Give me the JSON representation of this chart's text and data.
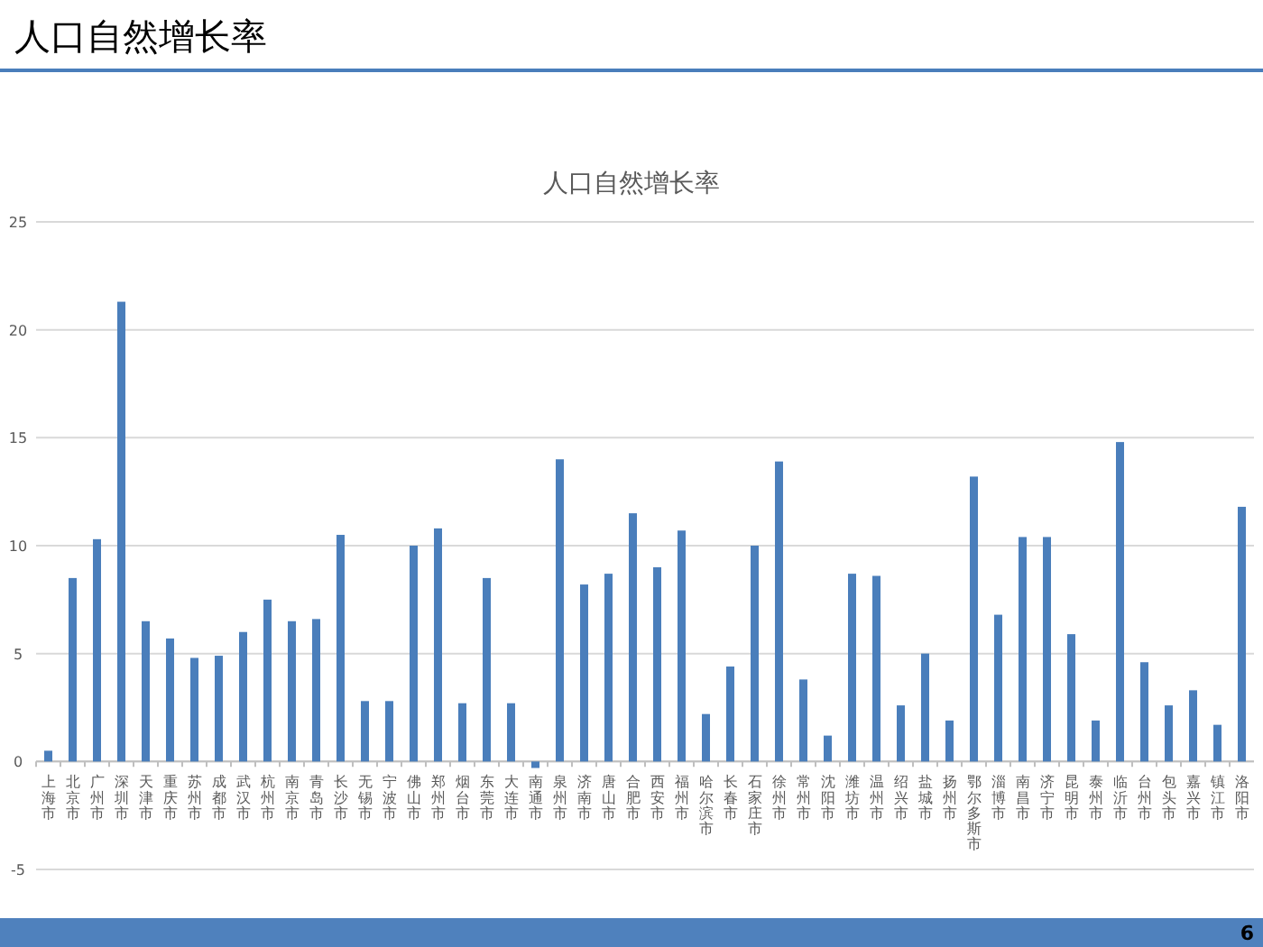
{
  "chart_data": {
    "type": "bar",
    "title": "人口自然增长率",
    "categories": [
      "上海市",
      "北京市",
      "广州市",
      "深圳市",
      "天津市",
      "重庆市",
      "苏州市",
      "成都市",
      "武汉市",
      "杭州市",
      "南京市",
      "青岛市",
      "长沙市",
      "无锡市",
      "宁波市",
      "佛山市",
      "郑州市",
      "烟台市",
      "东莞市",
      "大连市",
      "南通市",
      "泉州市",
      "济南市",
      "唐山市",
      "合肥市",
      "西安市",
      "福州市",
      "哈尔滨市",
      "长春市",
      "石家庄市",
      "徐州市",
      "常州市",
      "沈阳市",
      "潍坊市",
      "温州市",
      "绍兴市",
      "盐城市",
      "扬州市",
      "鄂尔多斯市",
      "淄博市",
      "南昌市",
      "济宁市",
      "昆明市",
      "泰州市",
      "临沂市",
      "台州市",
      "包头市",
      "嘉兴市",
      "镇江市",
      "洛阳市"
    ],
    "values": [
      0.5,
      8.5,
      10.3,
      21.3,
      6.5,
      5.7,
      4.8,
      4.9,
      6.0,
      7.5,
      6.5,
      6.6,
      10.5,
      2.8,
      2.8,
      10.0,
      10.8,
      2.7,
      8.5,
      2.7,
      -0.3,
      14.0,
      8.2,
      8.7,
      11.5,
      9.0,
      10.7,
      2.2,
      4.4,
      10.0,
      13.9,
      3.8,
      1.2,
      8.7,
      8.6,
      2.6,
      5.0,
      1.9,
      13.2,
      6.8,
      10.4,
      10.4,
      5.9,
      1.9,
      14.8,
      4.6,
      2.6,
      3.3,
      1.7,
      11.8
    ],
    "color": "#4a7ebb",
    "ylim": [
      -5,
      25
    ],
    "yticks": [
      -5,
      0,
      5,
      10,
      15,
      20,
      25
    ],
    "grid": "y",
    "annotations": [
      "人口自然增长率",
      "6"
    ]
  }
}
